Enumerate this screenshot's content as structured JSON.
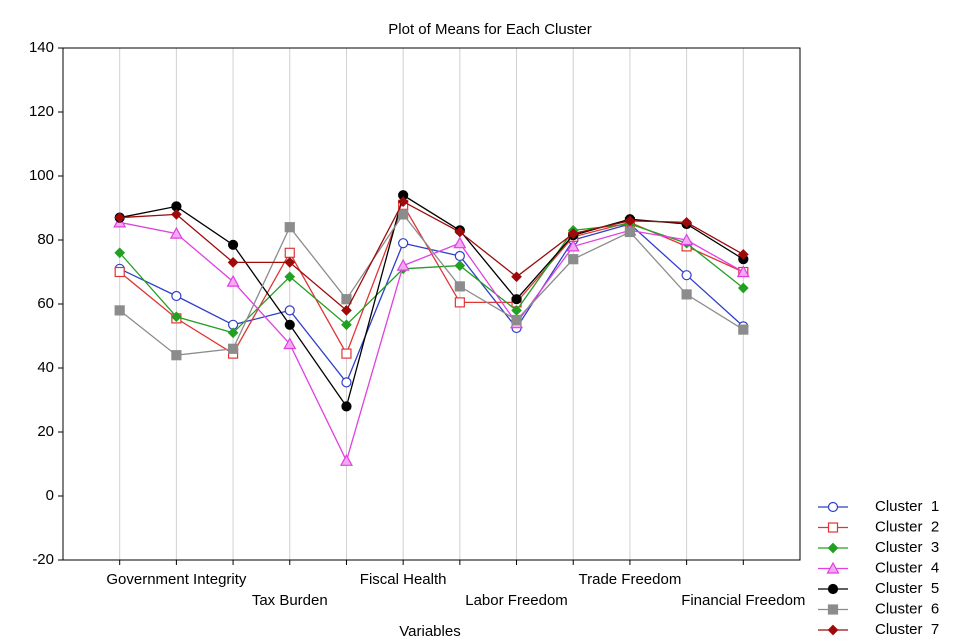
{
  "chart_data": {
    "type": "line",
    "title": "Plot of Means for Each Cluster",
    "x_label": "Variables",
    "categories": [
      null,
      "Government Integrity",
      null,
      "Tax Burden",
      null,
      "Fiscal Health",
      null,
      "Labor Freedom",
      null,
      "Trade Freedom",
      null,
      "Financial Freedom"
    ],
    "ylim": [
      -20,
      140
    ],
    "yticks": [
      -20,
      0,
      20,
      40,
      60,
      80,
      100,
      120,
      140
    ],
    "grid": "x",
    "series": [
      {
        "name": "Cluster  1",
        "color": "#2f3fc8",
        "marker": "circle-open",
        "values": [
          71,
          62.5,
          53.5,
          58,
          35.5,
          79,
          75,
          52.5,
          80,
          85,
          69,
          53
        ]
      },
      {
        "name": "Cluster  2",
        "color": "#e03535",
        "marker": "square-open",
        "values": [
          70,
          55.5,
          44.5,
          76,
          44.5,
          91,
          60.5,
          60.5,
          81,
          85.5,
          78,
          70
        ]
      },
      {
        "name": "Cluster  3",
        "color": "#22a022",
        "marker": "diamond",
        "values": [
          76,
          56,
          51,
          68.5,
          53.5,
          71,
          72,
          58,
          83,
          85,
          79,
          65
        ]
      },
      {
        "name": "Cluster  4",
        "color": "#e040e0",
        "marker": "triangle",
        "values": [
          85.5,
          82,
          67,
          47.5,
          11,
          72,
          79,
          54,
          78,
          83,
          80,
          70
        ]
      },
      {
        "name": "Cluster  5",
        "color": "#000000",
        "marker": "circle",
        "values": [
          87,
          90.5,
          78.5,
          53.5,
          28,
          94,
          83,
          61.5,
          81.5,
          86.5,
          85,
          74
        ]
      },
      {
        "name": "Cluster  6",
        "color": "#8c8c8c",
        "marker": "square",
        "values": [
          58,
          44,
          46,
          84,
          61.5,
          88,
          65.5,
          55,
          74,
          82.5,
          63,
          52
        ]
      },
      {
        "name": "Cluster  7",
        "color": "#9e0a0a",
        "marker": "diamond",
        "values": [
          87,
          88,
          73,
          73,
          58,
          92,
          82.5,
          68.5,
          82,
          86,
          85.5,
          75.5
        ]
      }
    ]
  }
}
